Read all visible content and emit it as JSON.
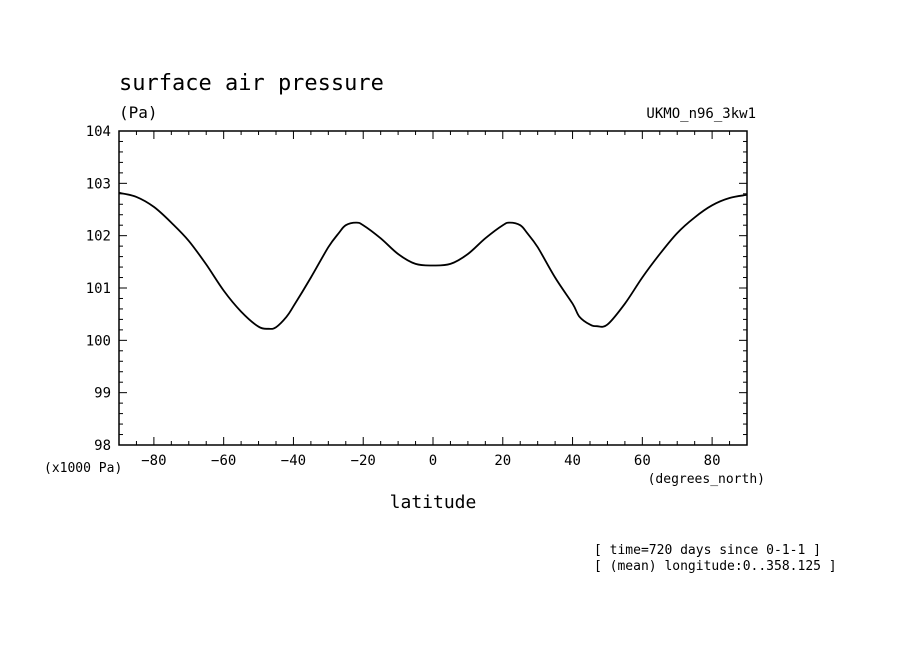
{
  "chart_data": {
    "type": "line",
    "title": "surface air pressure",
    "units": "(Pa)",
    "dataset": "UKMO_n96_3kw1",
    "ylabel_scale": "(x1000 Pa)",
    "xlabel": "latitude",
    "xunits": "(degrees_north)",
    "notes": [
      "[ time=720 days since 0-1-1 ]",
      "[ (mean) longitude:0..358.125 ]"
    ],
    "xlim": [
      -90,
      90
    ],
    "ylim": [
      98,
      104
    ],
    "xticks": [
      -80,
      -60,
      -40,
      -20,
      0,
      20,
      40,
      60,
      80
    ],
    "yticks": [
      98,
      99,
      100,
      101,
      102,
      103,
      104
    ],
    "grid": false,
    "line_color": "#000000",
    "series": [
      {
        "x": [
          -90,
          -85,
          -80,
          -75,
          -70,
          -65,
          -60,
          -55,
          -50,
          -47,
          -45,
          -42,
          -40,
          -35,
          -30,
          -27,
          -25,
          -22,
          -20,
          -15,
          -10,
          -5,
          0,
          5,
          10,
          15,
          20,
          22,
          25,
          27,
          30,
          35,
          40,
          42,
          45,
          47,
          50,
          55,
          60,
          65,
          70,
          75,
          80,
          85,
          90
        ],
        "y": [
          102.82,
          102.74,
          102.55,
          102.25,
          101.9,
          101.45,
          100.95,
          100.55,
          100.26,
          100.22,
          100.25,
          100.45,
          100.65,
          101.2,
          101.78,
          102.05,
          102.2,
          102.25,
          102.2,
          101.95,
          101.65,
          101.46,
          101.43,
          101.46,
          101.65,
          101.95,
          102.2,
          102.25,
          102.2,
          102.05,
          101.78,
          101.2,
          100.7,
          100.45,
          100.3,
          100.27,
          100.3,
          100.7,
          101.2,
          101.65,
          102.05,
          102.35,
          102.58,
          102.72,
          102.78
        ]
      }
    ]
  }
}
